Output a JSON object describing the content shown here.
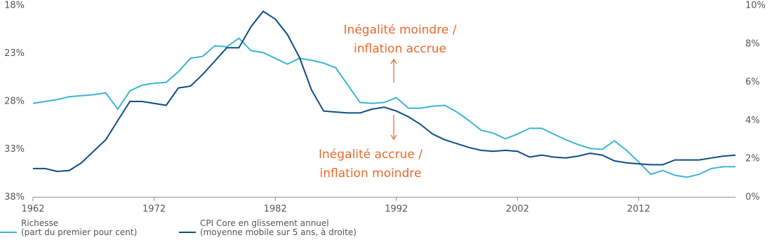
{
  "chart_data": {
    "type": "line",
    "x": [
      1962,
      1963,
      1964,
      1965,
      1966,
      1967,
      1968,
      1969,
      1970,
      1971,
      1972,
      1973,
      1974,
      1975,
      1976,
      1977,
      1978,
      1979,
      1980,
      1981,
      1982,
      1983,
      1984,
      1985,
      1986,
      1987,
      1988,
      1989,
      1990,
      1991,
      1992,
      1993,
      1994,
      1995,
      1996,
      1997,
      1998,
      1999,
      2000,
      2001,
      2002,
      2003,
      2004,
      2005,
      2006,
      2007,
      2008,
      2009,
      2010,
      2011,
      2012,
      2013,
      2014,
      2015,
      2016,
      2017,
      2018,
      2019,
      2020
    ],
    "xlim": [
      1962,
      2020
    ],
    "xticks": [
      1962,
      1972,
      1982,
      1992,
      2002,
      2012
    ],
    "ylim": [
      38,
      18
    ],
    "yticks": [
      {
        "value": 18,
        "label": "18%"
      },
      {
        "value": 23,
        "label": "23%"
      },
      {
        "value": 28,
        "label": "28%"
      },
      {
        "value": 33,
        "label": "33%"
      },
      {
        "value": 38,
        "label": "38%"
      }
    ],
    "y2lim": [
      0,
      10
    ],
    "y2ticks": [
      {
        "value": 0,
        "label": "0%"
      },
      {
        "value": 2,
        "label": "2%"
      },
      {
        "value": 4,
        "label": "4%"
      },
      {
        "value": 6,
        "label": "6%"
      },
      {
        "value": 8,
        "label": "8%"
      },
      {
        "value": 10,
        "label": "10%"
      }
    ],
    "series": [
      {
        "name": "Richesse\n(part du premier pour cent)",
        "color": "#3bb4d4",
        "values": [
          28.2,
          28.0,
          27.8,
          27.5,
          27.4,
          27.3,
          27.1,
          28.8,
          26.9,
          26.3,
          26.1,
          26.0,
          24.9,
          23.5,
          23.3,
          22.2,
          22.3,
          21.4,
          22.7,
          22.9,
          23.5,
          24.1,
          23.5,
          23.7,
          24.0,
          24.5,
          26.3,
          28.1,
          28.2,
          28.1,
          27.6,
          28.7,
          28.7,
          28.5,
          28.4,
          29.1,
          30.0,
          31.0,
          31.3,
          31.9,
          31.4,
          30.8,
          30.8,
          31.4,
          32.0,
          32.5,
          32.9,
          33.0,
          32.1,
          33.1,
          34.3,
          35.6,
          35.2,
          35.7,
          35.9,
          35.6,
          35.0,
          34.8,
          34.8
        ]
      },
      {
        "name": "CPI Core en glissement annuel\n(moyenne mobile sur 5 ans, à droite)",
        "color": "#0c4d85",
        "axis": "y2",
        "values": [
          1.5,
          1.5,
          1.35,
          1.4,
          1.8,
          2.4,
          3.0,
          4.0,
          5.0,
          5.0,
          4.9,
          4.8,
          5.7,
          5.8,
          6.4,
          7.1,
          7.8,
          7.8,
          8.9,
          9.7,
          9.3,
          8.5,
          7.3,
          5.6,
          4.5,
          4.45,
          4.4,
          4.4,
          4.6,
          4.7,
          4.5,
          4.2,
          3.8,
          3.3,
          3.0,
          2.8,
          2.6,
          2.45,
          2.4,
          2.45,
          2.4,
          2.1,
          2.2,
          2.1,
          2.05,
          2.15,
          2.3,
          2.2,
          1.9,
          1.8,
          1.75,
          1.7,
          1.7,
          1.95,
          1.95,
          1.95,
          2.05,
          2.15,
          2.2
        ]
      }
    ],
    "annotations": [
      "Inégalité moindre /\ninflation accrue",
      "Inégalité accrue /\ninflation moindre"
    ]
  }
}
